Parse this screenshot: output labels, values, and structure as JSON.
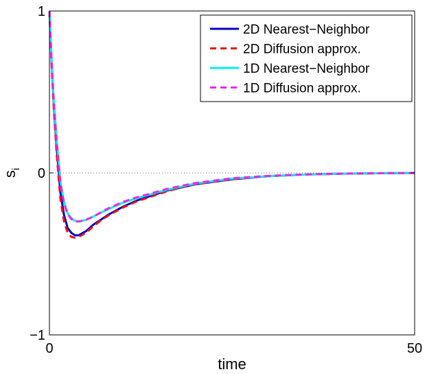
{
  "chart_data": {
    "type": "line",
    "title": "",
    "xlabel": "time",
    "ylabel": "s",
    "ylabel_subscript": "i",
    "xlim": [
      0,
      50
    ],
    "ylim": [
      -1,
      1
    ],
    "xticks": [
      "0",
      "50"
    ],
    "yticks": [
      "−1",
      "0",
      "1"
    ],
    "zero_line": "dotted",
    "grid": false,
    "legend_position": "top-right",
    "series": [
      {
        "name": "2D Nearest−Neighbor",
        "color": "#0000cc",
        "dash": "solid",
        "x": [
          0,
          0.3,
          0.6,
          1,
          1.5,
          2,
          2.5,
          3,
          3.5,
          4,
          5,
          6,
          7,
          8,
          10,
          12,
          14,
          16,
          18,
          20,
          25,
          30,
          35,
          40,
          45,
          50
        ],
        "y": [
          1,
          0.68,
          0.42,
          0.15,
          -0.12,
          -0.26,
          -0.34,
          -0.37,
          -0.385,
          -0.385,
          -0.36,
          -0.32,
          -0.29,
          -0.26,
          -0.21,
          -0.17,
          -0.14,
          -0.11,
          -0.09,
          -0.07,
          -0.04,
          -0.02,
          -0.01,
          -0.005,
          -0.002,
          0
        ]
      },
      {
        "name": "2D Diffusion approx.",
        "color": "#ee1111",
        "dash": "dashed",
        "x": [
          0,
          0.3,
          0.6,
          1,
          1.5,
          2,
          2.5,
          3,
          3.5,
          4,
          5,
          6,
          7,
          8,
          10,
          12,
          14,
          16,
          18,
          20,
          25,
          30,
          35,
          40,
          45,
          50
        ],
        "y": [
          1,
          0.66,
          0.39,
          0.11,
          -0.16,
          -0.3,
          -0.37,
          -0.395,
          -0.4,
          -0.395,
          -0.37,
          -0.33,
          -0.295,
          -0.265,
          -0.215,
          -0.175,
          -0.145,
          -0.115,
          -0.09,
          -0.07,
          -0.04,
          -0.02,
          -0.01,
          -0.005,
          -0.002,
          0
        ]
      },
      {
        "name": "1D Nearest−Neighbor",
        "color": "#00f0f0",
        "dash": "solid",
        "x": [
          0,
          0.3,
          0.6,
          1,
          1.5,
          2,
          2.5,
          3,
          3.5,
          4,
          5,
          6,
          7,
          8,
          10,
          12,
          14,
          16,
          18,
          20,
          25,
          30,
          35,
          40,
          45,
          50
        ],
        "y": [
          1,
          0.7,
          0.45,
          0.2,
          -0.05,
          -0.18,
          -0.25,
          -0.28,
          -0.295,
          -0.3,
          -0.29,
          -0.27,
          -0.245,
          -0.225,
          -0.185,
          -0.155,
          -0.13,
          -0.105,
          -0.085,
          -0.065,
          -0.035,
          -0.02,
          -0.01,
          -0.005,
          -0.002,
          0
        ]
      },
      {
        "name": "1D Diffusion approx.",
        "color": "#ee22ee",
        "dash": "dashed",
        "x": [
          0,
          0.3,
          0.6,
          1,
          1.5,
          2,
          2.5,
          3,
          3.5,
          4,
          5,
          6,
          7,
          8,
          10,
          12,
          14,
          16,
          18,
          20,
          25,
          30,
          35,
          40,
          45,
          50
        ],
        "y": [
          1,
          0.69,
          0.44,
          0.19,
          -0.06,
          -0.19,
          -0.255,
          -0.285,
          -0.3,
          -0.3,
          -0.29,
          -0.27,
          -0.245,
          -0.22,
          -0.18,
          -0.15,
          -0.125,
          -0.1,
          -0.08,
          -0.062,
          -0.033,
          -0.018,
          -0.009,
          -0.004,
          -0.002,
          0
        ]
      }
    ]
  }
}
